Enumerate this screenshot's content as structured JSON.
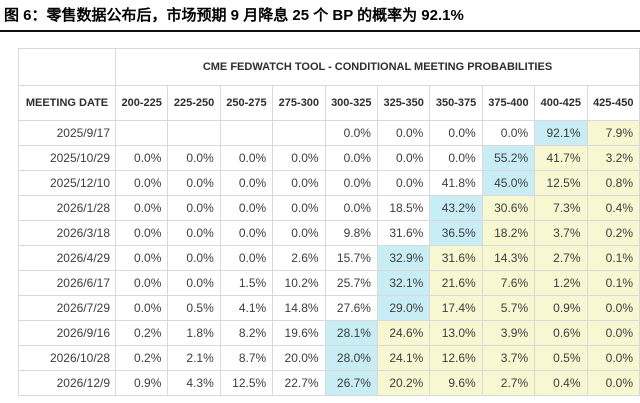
{
  "page_title": "图 6：零售数据公布后，市场预期 9 月降息 25 个 BP 的概率为 92.1%",
  "chart_data": {
    "type": "table",
    "title": "CME FEDWATCH TOOL - CONDITIONAL MEETING PROBABILITIES",
    "date_column_header": "MEETING DATE",
    "rate_ranges": [
      "200-225",
      "225-250",
      "250-275",
      "275-300",
      "300-325",
      "325-350",
      "350-375",
      "375-400",
      "400-425",
      "425-450"
    ],
    "rows": [
      {
        "date": "2025/9/17",
        "values": [
          "",
          "",
          "",
          "",
          "0.0%",
          "0.0%",
          "0.0%",
          "0.0%",
          "92.1%",
          "7.9%"
        ],
        "max_index": 8
      },
      {
        "date": "2025/10/29",
        "values": [
          "0.0%",
          "0.0%",
          "0.0%",
          "0.0%",
          "0.0%",
          "0.0%",
          "0.0%",
          "55.2%",
          "41.7%",
          "3.2%"
        ],
        "max_index": 7
      },
      {
        "date": "2025/12/10",
        "values": [
          "0.0%",
          "0.0%",
          "0.0%",
          "0.0%",
          "0.0%",
          "0.0%",
          "41.8%",
          "45.0%",
          "12.5%",
          "0.8%"
        ],
        "max_index": 7
      },
      {
        "date": "2026/1/28",
        "values": [
          "0.0%",
          "0.0%",
          "0.0%",
          "0.0%",
          "0.0%",
          "18.5%",
          "43.2%",
          "30.6%",
          "7.3%",
          "0.4%"
        ],
        "max_index": 6
      },
      {
        "date": "2026/3/18",
        "values": [
          "0.0%",
          "0.0%",
          "0.0%",
          "0.0%",
          "9.8%",
          "31.6%",
          "36.5%",
          "18.2%",
          "3.7%",
          "0.2%"
        ],
        "max_index": 6
      },
      {
        "date": "2026/4/29",
        "values": [
          "0.0%",
          "0.0%",
          "0.0%",
          "2.6%",
          "15.7%",
          "32.9%",
          "31.6%",
          "14.3%",
          "2.7%",
          "0.1%"
        ],
        "max_index": 5
      },
      {
        "date": "2026/6/17",
        "values": [
          "0.0%",
          "0.0%",
          "1.5%",
          "10.2%",
          "25.7%",
          "32.1%",
          "21.6%",
          "7.6%",
          "1.2%",
          "0.1%"
        ],
        "max_index": 5
      },
      {
        "date": "2026/7/29",
        "values": [
          "0.0%",
          "0.5%",
          "4.1%",
          "14.8%",
          "27.6%",
          "29.0%",
          "17.4%",
          "5.7%",
          "0.9%",
          "0.0%"
        ],
        "max_index": 5
      },
      {
        "date": "2026/9/16",
        "values": [
          "0.2%",
          "1.8%",
          "8.2%",
          "19.6%",
          "28.1%",
          "24.6%",
          "13.0%",
          "3.9%",
          "0.6%",
          "0.0%"
        ],
        "max_index": 4
      },
      {
        "date": "2026/10/28",
        "values": [
          "0.2%",
          "2.1%",
          "8.7%",
          "20.0%",
          "28.0%",
          "24.1%",
          "12.6%",
          "3.7%",
          "0.5%",
          "0.0%"
        ],
        "max_index": 4
      },
      {
        "date": "2026/12/9",
        "values": [
          "0.9%",
          "4.3%",
          "12.5%",
          "22.7%",
          "26.7%",
          "20.2%",
          "9.6%",
          "2.7%",
          "0.4%",
          "0.0%"
        ],
        "max_index": 4
      }
    ],
    "layout_hints": {
      "highlight_rule": "cell at max_index is cyan (highest probability); cells right of it are pale yellow; cells left of it are white"
    },
    "colors": {
      "max_probability_bg": "#c8edf5",
      "right_of_max_bg": "#f7f7d2",
      "grid_border": "#d9d9d9",
      "cell_text": "#3d3d3d",
      "title_text": "#000000"
    }
  }
}
